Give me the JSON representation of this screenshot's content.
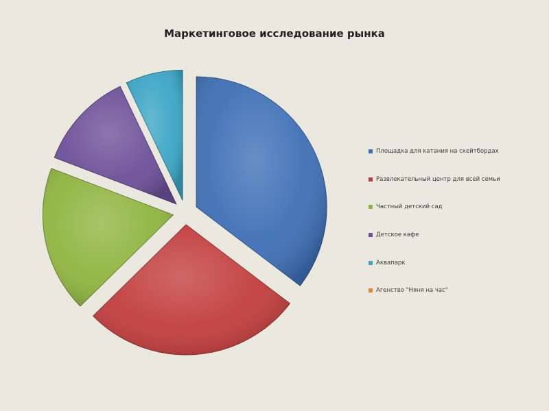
{
  "chart_data": {
    "type": "pie",
    "title": "Маркетинговое исследование рынка",
    "categories": [
      "Площадка для катания на скейтбордах",
      "Развлекательный центр для всей семьи",
      "Частный детский сад",
      "Детское кафе",
      "Аквапарк",
      "Агенство \"Няня на час\""
    ],
    "values": [
      35,
      27,
      18,
      12,
      7,
      0
    ],
    "colors": [
      "#3d6fb5",
      "#c13d3c",
      "#8fb43f",
      "#6d4f98",
      "#3aa5c4",
      "#e8862c"
    ],
    "legend_position": "right",
    "exploded": true
  }
}
